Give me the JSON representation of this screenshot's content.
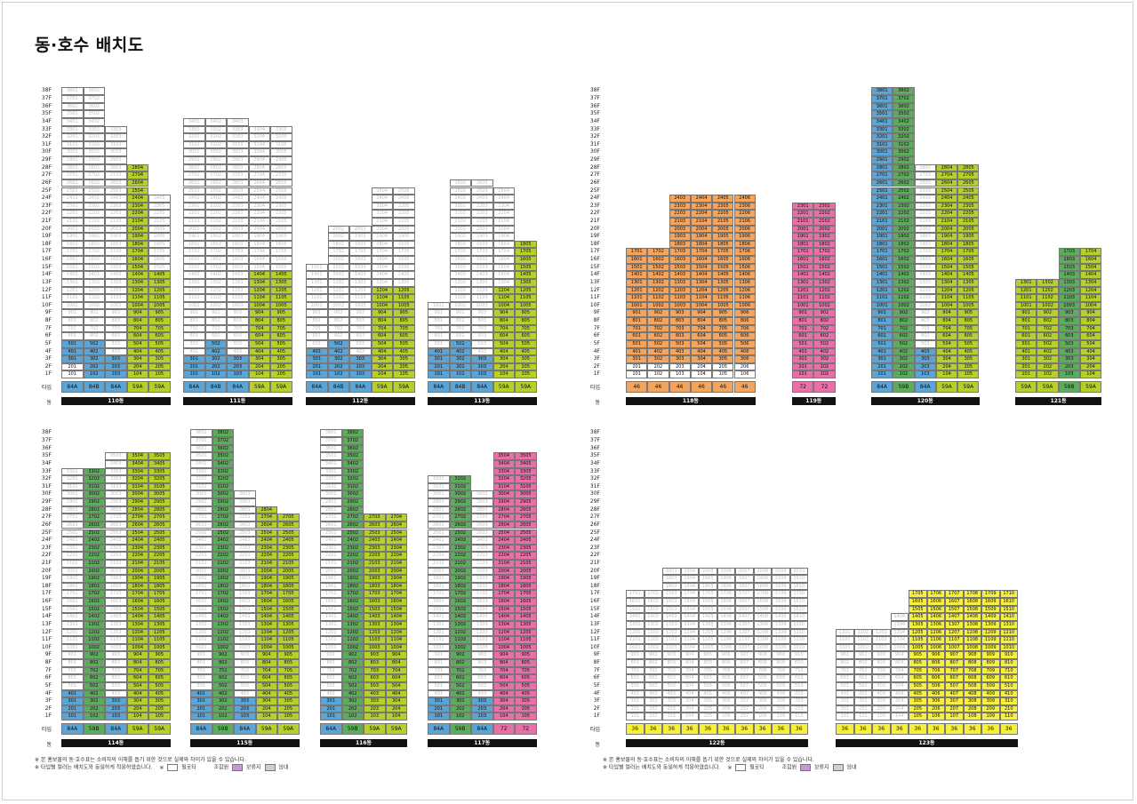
{
  "title": "동·호수 배치도",
  "labels": {
    "type_row": "타입",
    "dong_row": "동"
  },
  "notes": {
    "note1": "※ 본 홍보물의 동·호수표는 소비자의 이해를 돕기 위한 것으로 실제와 차이가 있을 수 있습니다.",
    "note2": "※ 타입별 컬러는 배치도와 동일하게 적용하였습니다.",
    "legend_pilotis": "필로티",
    "legend_union": "조합원",
    "legend_reserve": "보류지",
    "legend_rental": "임대"
  },
  "colors": {
    "type_84A": "#5ba4d6",
    "type_84B": "#5ba4d6",
    "type_59A": "#b6cf2b",
    "type_59B": "#5dac5c",
    "type_46": "#f4a45c",
    "type_72": "#e86fa8",
    "type_36": "#f6f03c",
    "union": "#ffffff",
    "reserve": "#c79ad6",
    "rental": "#cfcfcf"
  },
  "buildings": [
    {
      "dong": "110동",
      "types": [
        "84A",
        "84B",
        "84A",
        "59A",
        "59A"
      ]
    },
    {
      "dong": "111동",
      "types": [
        "84A",
        "84B",
        "84A",
        "59A",
        "59A"
      ]
    },
    {
      "dong": "112동",
      "types": [
        "84A",
        "84B",
        "84A",
        "59A",
        "59A"
      ]
    },
    {
      "dong": "113동",
      "types": [
        "84A",
        "84B",
        "84A",
        "59A",
        "59A"
      ]
    },
    {
      "dong": "118동",
      "types": [
        "46",
        "46",
        "46",
        "46",
        "46",
        "46"
      ]
    },
    {
      "dong": "119동",
      "types": [
        "72",
        "72"
      ]
    },
    {
      "dong": "120동",
      "types": [
        "84A",
        "59B",
        "84A",
        "59A",
        "59A"
      ]
    },
    {
      "dong": "121동",
      "types": [
        "59A",
        "59A",
        "59B",
        "59A"
      ]
    },
    {
      "dong": "114동",
      "types": [
        "84A",
        "59B",
        "84A",
        "59A",
        "59A"
      ]
    },
    {
      "dong": "115동",
      "types": [
        "84A",
        "59B",
        "84A",
        "59A",
        "59A"
      ]
    },
    {
      "dong": "116동",
      "types": [
        "84A",
        "59B",
        "59A",
        "59A"
      ]
    },
    {
      "dong": "117동",
      "types": [
        "84A",
        "59B",
        "84A",
        "72",
        "72"
      ]
    },
    {
      "dong": "122동",
      "types": [
        "36",
        "36",
        "36",
        "36",
        "36",
        "36",
        "36",
        "36",
        "36",
        "36"
      ]
    },
    {
      "dong": "123동",
      "types": [
        "36",
        "36",
        "36",
        "36",
        "36",
        "36",
        "36",
        "36",
        "36",
        "36"
      ]
    }
  ]
}
